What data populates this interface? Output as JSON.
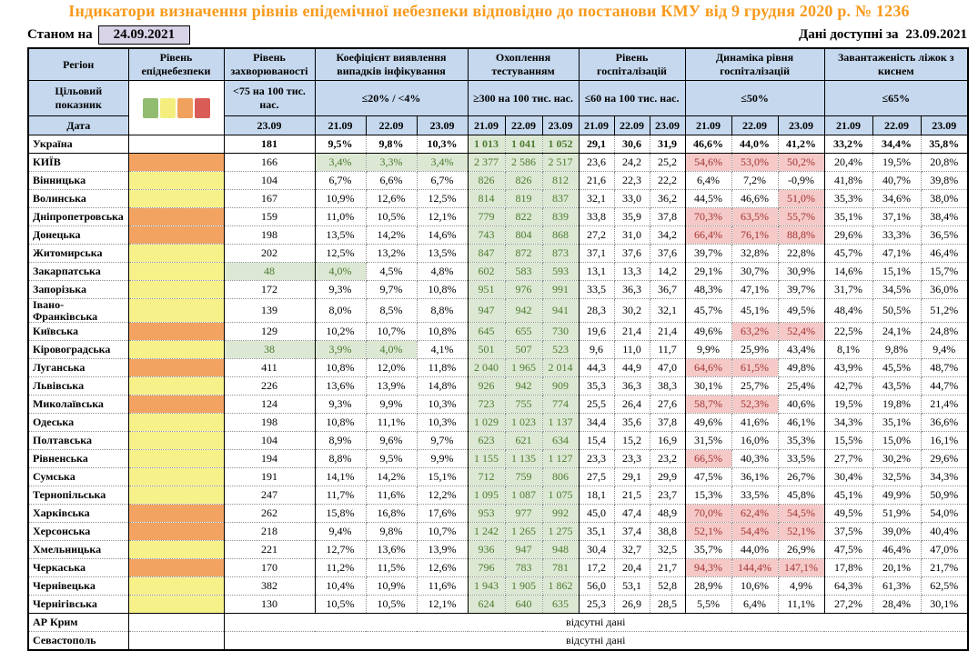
{
  "title": "Індикатори визначення рівнів епідемічної небезпеки відповідно до постанови КМУ від 9 грудня 2020 р. № 1236",
  "as_of": {
    "label": "Станом на",
    "date": "24.09.2021"
  },
  "data_available": {
    "label": "Дані доступні за",
    "date": "23.09.2021"
  },
  "no_data_text": "відсутні дані",
  "colors": {
    "title": "#f89a1c",
    "header_blue": "#c5d8ee",
    "date_box": "#d9d3e8",
    "level_yellow": "#f7f18a",
    "level_orange": "#f3a361",
    "good_bg": "#dce8d3",
    "good_text": "#4d7a31",
    "bad_bg": "#f5c9c7",
    "bad_text": "#a13535"
  },
  "header": {
    "region_label": "Регіон",
    "target_label": "Цільовий показник",
    "date_label": "Дата",
    "legend_names": [
      "green",
      "yellow",
      "orange",
      "red"
    ],
    "legend_colors": [
      "#92bd71",
      "#f3ee7e",
      "#efa15d",
      "#da5c57"
    ],
    "groups": [
      {
        "key": "epidemic-level",
        "label": "Рівень епіднебезпеки",
        "cols": 1,
        "target": "",
        "dates": []
      },
      {
        "key": "morbidity",
        "label": "Рівень захворюваності",
        "cols": 1,
        "target": "<75 на 100 тис. нас.",
        "dates": [
          "23.09"
        ]
      },
      {
        "key": "detection-coefficient",
        "label": "Коефіцієнт виявлення випадків інфікування",
        "cols": 3,
        "target": "≤20% / <4%",
        "dates": [
          "21.09",
          "22.09",
          "23.09"
        ]
      },
      {
        "key": "testing-coverage",
        "label": "Охоплення тестуванням",
        "cols": 3,
        "target": "≥300 на 100 тис. нас.",
        "dates": [
          "21.09",
          "22.09",
          "23.09"
        ]
      },
      {
        "key": "hospitalization-level",
        "label": "Рівень госпіталізацій",
        "cols": 3,
        "target": "≤60 на 100 тис. нас.",
        "dates": [
          "21.09",
          "22.09",
          "23.09"
        ]
      },
      {
        "key": "hospitalization-dynamics",
        "label": "Динаміка рівня госпіталізацій",
        "cols": 3,
        "target": "≤50%",
        "dates": [
          "21.09",
          "22.09",
          "23.09"
        ]
      },
      {
        "key": "oxygen-beds",
        "label": "Завантаженість ліжок з киснем",
        "cols": 3,
        "target": "≤65%",
        "dates": [
          "21.09",
          "22.09",
          "23.09"
        ]
      }
    ]
  },
  "rows": [
    {
      "region": "Україна",
      "level": "",
      "bold": true,
      "sb": true,
      "morb": "181",
      "morb_g": false,
      "coef": [
        "9,5%",
        "9,8%",
        "10,3%"
      ],
      "coef_g": [
        false,
        false,
        false
      ],
      "test": [
        "1 013",
        "1 041",
        "1 052"
      ],
      "hosp": [
        "29,1",
        "30,6",
        "31,9"
      ],
      "dyn": [
        "46,6%",
        "44,0%",
        "41,2%"
      ],
      "dyn_r": [
        false,
        false,
        false
      ],
      "oxy": [
        "33,2%",
        "34,4%",
        "35,8%"
      ]
    },
    {
      "region": "КИЇВ",
      "level": "orange",
      "morb": "166",
      "morb_g": false,
      "coef": [
        "3,4%",
        "3,3%",
        "3,4%"
      ],
      "coef_g": [
        true,
        true,
        true
      ],
      "test": [
        "2 377",
        "2 586",
        "2 517"
      ],
      "hosp": [
        "23,6",
        "24,2",
        "25,2"
      ],
      "dyn": [
        "54,6%",
        "53,0%",
        "50,2%"
      ],
      "dyn_r": [
        true,
        true,
        true
      ],
      "oxy": [
        "20,4%",
        "19,5%",
        "20,8%"
      ]
    },
    {
      "region": "Вінницька",
      "level": "yellow",
      "morb": "104",
      "morb_g": false,
      "coef": [
        "6,7%",
        "6,6%",
        "6,7%"
      ],
      "coef_g": [
        false,
        false,
        false
      ],
      "test": [
        "826",
        "826",
        "812"
      ],
      "hosp": [
        "21,6",
        "22,3",
        "22,2"
      ],
      "dyn": [
        "6,4%",
        "7,2%",
        "-0,9%"
      ],
      "dyn_r": [
        false,
        false,
        false
      ],
      "oxy": [
        "41,8%",
        "40,7%",
        "39,8%"
      ]
    },
    {
      "region": "Волинська",
      "level": "yellow",
      "morb": "167",
      "morb_g": false,
      "coef": [
        "10,9%",
        "12,6%",
        "12,5%"
      ],
      "coef_g": [
        false,
        false,
        false
      ],
      "test": [
        "814",
        "819",
        "837"
      ],
      "hosp": [
        "32,1",
        "33,0",
        "36,2"
      ],
      "dyn": [
        "44,5%",
        "46,6%",
        "51,0%"
      ],
      "dyn_r": [
        false,
        false,
        true
      ],
      "oxy": [
        "35,3%",
        "34,6%",
        "38,0%"
      ]
    },
    {
      "region": "Дніпропетровська",
      "level": "orange",
      "morb": "159",
      "morb_g": false,
      "coef": [
        "11,0%",
        "10,5%",
        "12,1%"
      ],
      "coef_g": [
        false,
        false,
        false
      ],
      "test": [
        "779",
        "822",
        "839"
      ],
      "hosp": [
        "33,8",
        "35,9",
        "37,8"
      ],
      "dyn": [
        "70,3%",
        "63,5%",
        "55,7%"
      ],
      "dyn_r": [
        true,
        true,
        true
      ],
      "oxy": [
        "35,1%",
        "37,1%",
        "38,4%"
      ]
    },
    {
      "region": "Донецька",
      "level": "orange",
      "morb": "198",
      "morb_g": false,
      "coef": [
        "13,5%",
        "14,2%",
        "14,6%"
      ],
      "coef_g": [
        false,
        false,
        false
      ],
      "test": [
        "743",
        "804",
        "868"
      ],
      "hosp": [
        "27,2",
        "31,0",
        "34,2"
      ],
      "dyn": [
        "66,4%",
        "76,1%",
        "88,8%"
      ],
      "dyn_r": [
        true,
        true,
        true
      ],
      "oxy": [
        "29,6%",
        "33,3%",
        "36,5%"
      ]
    },
    {
      "region": "Житомирська",
      "level": "yellow",
      "morb": "202",
      "morb_g": false,
      "coef": [
        "12,5%",
        "13,2%",
        "13,5%"
      ],
      "coef_g": [
        false,
        false,
        false
      ],
      "test": [
        "847",
        "872",
        "873"
      ],
      "hosp": [
        "37,1",
        "37,6",
        "37,6"
      ],
      "dyn": [
        "39,7%",
        "32,8%",
        "22,8%"
      ],
      "dyn_r": [
        false,
        false,
        false
      ],
      "oxy": [
        "45,7%",
        "47,1%",
        "46,4%"
      ]
    },
    {
      "region": "Закарпатська",
      "level": "yellow",
      "morb": "48",
      "morb_g": true,
      "coef": [
        "4,0%",
        "4,5%",
        "4,8%"
      ],
      "coef_g": [
        true,
        false,
        false
      ],
      "test": [
        "602",
        "583",
        "593"
      ],
      "hosp": [
        "13,1",
        "13,3",
        "14,2"
      ],
      "dyn": [
        "29,1%",
        "30,7%",
        "30,9%"
      ],
      "dyn_r": [
        false,
        false,
        false
      ],
      "oxy": [
        "14,6%",
        "15,1%",
        "15,7%"
      ]
    },
    {
      "region": "Запорізька",
      "level": "yellow",
      "morb": "172",
      "morb_g": false,
      "coef": [
        "9,3%",
        "9,7%",
        "10,8%"
      ],
      "coef_g": [
        false,
        false,
        false
      ],
      "test": [
        "951",
        "976",
        "991"
      ],
      "hosp": [
        "33,5",
        "36,3",
        "36,7"
      ],
      "dyn": [
        "48,3%",
        "47,1%",
        "39,7%"
      ],
      "dyn_r": [
        false,
        false,
        false
      ],
      "oxy": [
        "31,7%",
        "34,5%",
        "36,0%"
      ]
    },
    {
      "region": "Івано-Франківська",
      "level": "yellow",
      "morb": "139",
      "morb_g": false,
      "coef": [
        "8,0%",
        "8,5%",
        "8,8%"
      ],
      "coef_g": [
        false,
        false,
        false
      ],
      "test": [
        "947",
        "942",
        "941"
      ],
      "hosp": [
        "28,3",
        "30,2",
        "32,1"
      ],
      "dyn": [
        "45,7%",
        "45,1%",
        "49,5%"
      ],
      "dyn_r": [
        false,
        false,
        false
      ],
      "oxy": [
        "48,4%",
        "50,5%",
        "51,2%"
      ]
    },
    {
      "region": "Київська",
      "level": "orange",
      "morb": "129",
      "morb_g": false,
      "coef": [
        "10,2%",
        "10,7%",
        "10,8%"
      ],
      "coef_g": [
        false,
        false,
        false
      ],
      "test": [
        "645",
        "655",
        "730"
      ],
      "hosp": [
        "19,6",
        "21,4",
        "21,4"
      ],
      "dyn": [
        "49,6%",
        "63,2%",
        "52,4%"
      ],
      "dyn_r": [
        false,
        true,
        true
      ],
      "oxy": [
        "22,5%",
        "24,1%",
        "24,8%"
      ]
    },
    {
      "region": "Кіровоградська",
      "level": "yellow",
      "morb": "38",
      "morb_g": true,
      "coef": [
        "3,9%",
        "4,0%",
        "4,1%"
      ],
      "coef_g": [
        true,
        true,
        false
      ],
      "test": [
        "501",
        "507",
        "523"
      ],
      "hosp": [
        "9,6",
        "11,0",
        "11,7"
      ],
      "dyn": [
        "9,9%",
        "25,9%",
        "43,4%"
      ],
      "dyn_r": [
        false,
        false,
        false
      ],
      "oxy": [
        "8,1%",
        "9,8%",
        "9,4%"
      ]
    },
    {
      "region": "Луганська",
      "level": "orange",
      "morb": "411",
      "morb_g": false,
      "coef": [
        "10,8%",
        "12,0%",
        "11,8%"
      ],
      "coef_g": [
        false,
        false,
        false
      ],
      "test": [
        "2 040",
        "1 965",
        "2 014"
      ],
      "hosp": [
        "44,3",
        "44,9",
        "47,0"
      ],
      "dyn": [
        "64,6%",
        "61,5%",
        "49,8%"
      ],
      "dyn_r": [
        true,
        true,
        false
      ],
      "oxy": [
        "43,9%",
        "45,5%",
        "48,7%"
      ]
    },
    {
      "region": "Львівська",
      "level": "yellow",
      "morb": "226",
      "morb_g": false,
      "coef": [
        "13,6%",
        "13,9%",
        "14,8%"
      ],
      "coef_g": [
        false,
        false,
        false
      ],
      "test": [
        "926",
        "942",
        "909"
      ],
      "hosp": [
        "35,3",
        "36,3",
        "38,3"
      ],
      "dyn": [
        "30,1%",
        "25,7%",
        "25,4%"
      ],
      "dyn_r": [
        false,
        false,
        false
      ],
      "oxy": [
        "42,7%",
        "43,5%",
        "44,7%"
      ]
    },
    {
      "region": "Миколаївська",
      "level": "orange",
      "morb": "124",
      "morb_g": false,
      "coef": [
        "9,3%",
        "9,9%",
        "10,3%"
      ],
      "coef_g": [
        false,
        false,
        false
      ],
      "test": [
        "723",
        "755",
        "774"
      ],
      "hosp": [
        "25,5",
        "26,4",
        "27,6"
      ],
      "dyn": [
        "58,7%",
        "52,3%",
        "40,6%"
      ],
      "dyn_r": [
        true,
        true,
        false
      ],
      "oxy": [
        "19,5%",
        "19,8%",
        "21,4%"
      ]
    },
    {
      "region": "Одеська",
      "level": "yellow",
      "morb": "198",
      "morb_g": false,
      "coef": [
        "10,8%",
        "11,1%",
        "10,3%"
      ],
      "coef_g": [
        false,
        false,
        false
      ],
      "test": [
        "1 029",
        "1 023",
        "1 137"
      ],
      "hosp": [
        "34,4",
        "35,6",
        "37,8"
      ],
      "dyn": [
        "49,6%",
        "41,6%",
        "46,1%"
      ],
      "dyn_r": [
        false,
        false,
        false
      ],
      "oxy": [
        "34,3%",
        "35,1%",
        "36,6%"
      ]
    },
    {
      "region": "Полтавська",
      "level": "yellow",
      "morb": "104",
      "morb_g": false,
      "coef": [
        "8,9%",
        "9,6%",
        "9,7%"
      ],
      "coef_g": [
        false,
        false,
        false
      ],
      "test": [
        "623",
        "621",
        "634"
      ],
      "hosp": [
        "15,4",
        "15,2",
        "16,9"
      ],
      "dyn": [
        "31,5%",
        "16,0%",
        "35,3%"
      ],
      "dyn_r": [
        false,
        false,
        false
      ],
      "oxy": [
        "15,5%",
        "15,0%",
        "16,1%"
      ]
    },
    {
      "region": "Рівненська",
      "level": "yellow",
      "morb": "194",
      "morb_g": false,
      "coef": [
        "8,8%",
        "9,5%",
        "9,9%"
      ],
      "coef_g": [
        false,
        false,
        false
      ],
      "test": [
        "1 155",
        "1 135",
        "1 127"
      ],
      "hosp": [
        "23,3",
        "23,3",
        "23,2"
      ],
      "dyn": [
        "66,5%",
        "40,3%",
        "33,5%"
      ],
      "dyn_r": [
        true,
        false,
        false
      ],
      "oxy": [
        "27,7%",
        "30,2%",
        "29,6%"
      ]
    },
    {
      "region": "Сумська",
      "level": "yellow",
      "morb": "191",
      "morb_g": false,
      "coef": [
        "14,1%",
        "14,2%",
        "15,1%"
      ],
      "coef_g": [
        false,
        false,
        false
      ],
      "test": [
        "712",
        "759",
        "806"
      ],
      "hosp": [
        "27,5",
        "29,1",
        "29,9"
      ],
      "dyn": [
        "47,5%",
        "36,1%",
        "26,7%"
      ],
      "dyn_r": [
        false,
        false,
        false
      ],
      "oxy": [
        "30,4%",
        "32,5%",
        "34,3%"
      ]
    },
    {
      "region": "Тернопільська",
      "level": "yellow",
      "morb": "247",
      "morb_g": false,
      "coef": [
        "11,7%",
        "11,6%",
        "12,2%"
      ],
      "coef_g": [
        false,
        false,
        false
      ],
      "test": [
        "1 095",
        "1 087",
        "1 075"
      ],
      "hosp": [
        "18,1",
        "21,5",
        "23,7"
      ],
      "dyn": [
        "15,3%",
        "33,5%",
        "45,8%"
      ],
      "dyn_r": [
        false,
        false,
        false
      ],
      "oxy": [
        "45,1%",
        "49,9%",
        "50,9%"
      ]
    },
    {
      "region": "Харківська",
      "level": "orange",
      "morb": "262",
      "morb_g": false,
      "coef": [
        "15,8%",
        "16,8%",
        "17,6%"
      ],
      "coef_g": [
        false,
        false,
        false
      ],
      "test": [
        "953",
        "977",
        "992"
      ],
      "hosp": [
        "45,0",
        "47,4",
        "48,9"
      ],
      "dyn": [
        "70,0%",
        "62,4%",
        "54,5%"
      ],
      "dyn_r": [
        true,
        true,
        true
      ],
      "oxy": [
        "49,5%",
        "51,9%",
        "54,0%"
      ]
    },
    {
      "region": "Херсонська",
      "level": "orange",
      "morb": "218",
      "morb_g": false,
      "coef": [
        "9,4%",
        "9,8%",
        "10,7%"
      ],
      "coef_g": [
        false,
        false,
        false
      ],
      "test": [
        "1 242",
        "1 265",
        "1 275"
      ],
      "hosp": [
        "35,1",
        "37,4",
        "38,8"
      ],
      "dyn": [
        "52,1%",
        "54,4%",
        "52,1%"
      ],
      "dyn_r": [
        true,
        true,
        true
      ],
      "oxy": [
        "37,5%",
        "39,0%",
        "40,4%"
      ]
    },
    {
      "region": "Хмельницька",
      "level": "yellow",
      "morb": "221",
      "morb_g": false,
      "coef": [
        "12,7%",
        "13,6%",
        "13,9%"
      ],
      "coef_g": [
        false,
        false,
        false
      ],
      "test": [
        "936",
        "947",
        "948"
      ],
      "hosp": [
        "30,4",
        "32,7",
        "32,5"
      ],
      "dyn": [
        "35,7%",
        "44,0%",
        "26,9%"
      ],
      "dyn_r": [
        false,
        false,
        false
      ],
      "oxy": [
        "47,5%",
        "46,4%",
        "47,0%"
      ]
    },
    {
      "region": "Черкаська",
      "level": "orange",
      "morb": "170",
      "morb_g": false,
      "coef": [
        "11,2%",
        "11,5%",
        "12,6%"
      ],
      "coef_g": [
        false,
        false,
        false
      ],
      "test": [
        "796",
        "783",
        "781"
      ],
      "hosp": [
        "17,2",
        "20,4",
        "21,7"
      ],
      "dyn": [
        "94,3%",
        "144,4%",
        "147,1%"
      ],
      "dyn_r": [
        true,
        true,
        true
      ],
      "oxy": [
        "17,8%",
        "20,1%",
        "21,7%"
      ]
    },
    {
      "region": "Чернівецька",
      "level": "yellow",
      "morb": "382",
      "morb_g": false,
      "coef": [
        "10,4%",
        "10,9%",
        "11,6%"
      ],
      "coef_g": [
        false,
        false,
        false
      ],
      "test": [
        "1 943",
        "1 905",
        "1 862"
      ],
      "hosp": [
        "56,0",
        "53,1",
        "52,8"
      ],
      "dyn": [
        "28,9%",
        "10,6%",
        "4,9%"
      ],
      "dyn_r": [
        false,
        false,
        false
      ],
      "oxy": [
        "64,3%",
        "61,3%",
        "62,5%"
      ]
    },
    {
      "region": "Чернігівська",
      "level": "yellow",
      "sb": true,
      "morb": "130",
      "morb_g": false,
      "coef": [
        "10,5%",
        "10,5%",
        "12,1%"
      ],
      "coef_g": [
        false,
        false,
        false
      ],
      "test": [
        "624",
        "640",
        "635"
      ],
      "hosp": [
        "25,3",
        "26,9",
        "28,5"
      ],
      "dyn": [
        "5,5%",
        "6,4%",
        "11,1%"
      ],
      "dyn_r": [
        false,
        false,
        false
      ],
      "oxy": [
        "27,2%",
        "28,4%",
        "30,1%"
      ]
    },
    {
      "region": "АР Крим",
      "level": "",
      "nodata": true
    },
    {
      "region": "Севастополь",
      "level": "",
      "nodata": true
    }
  ]
}
